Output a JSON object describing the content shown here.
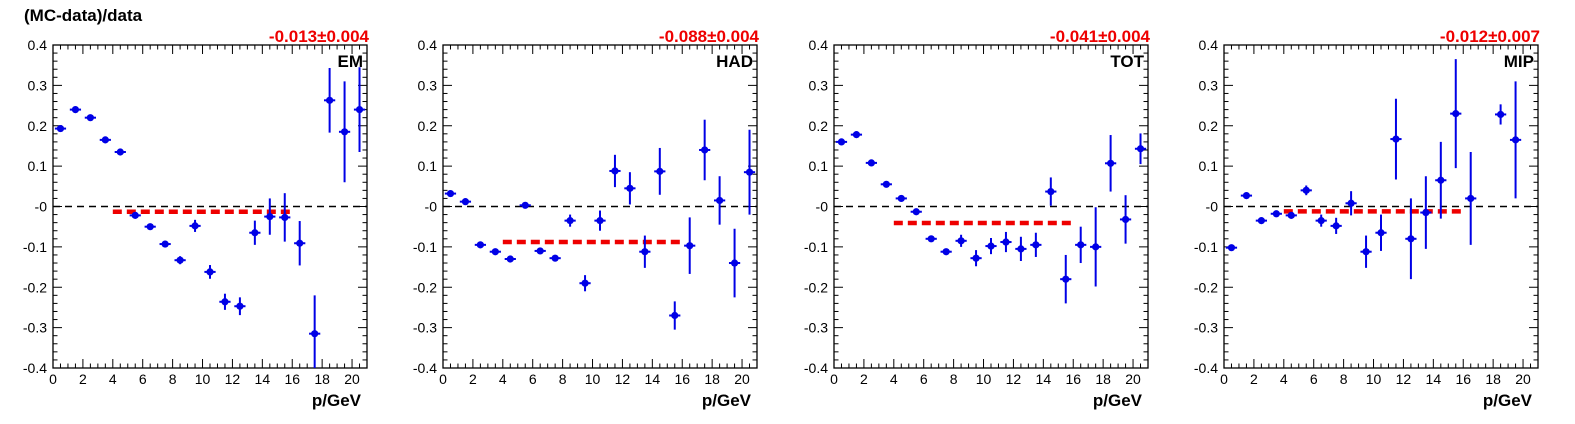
{
  "figure": {
    "ylabel": "(MC-data)/data"
  },
  "chart_data": [
    {
      "type": "scatter",
      "panel": "EM",
      "xlabel": "p/GeV",
      "fit_label": "-0.013±0.004",
      "fit": {
        "value": -0.013,
        "x_range": [
          4,
          16
        ]
      },
      "xlim": [
        0,
        21
      ],
      "ylim": [
        -0.4,
        0.4
      ],
      "x_ticks": [
        0,
        2,
        4,
        6,
        8,
        10,
        12,
        14,
        16,
        18,
        20
      ],
      "y_ticks": [
        -0.4,
        -0.3,
        -0.2,
        -0.1,
        0,
        0.1,
        0.2,
        0.3,
        0.4
      ],
      "y_tick_labels": [
        "-0.4",
        "-0.3",
        "-0.2",
        "-0.1",
        "-0",
        "0.1",
        "0.2",
        "0.3",
        "0.4"
      ],
      "grid": false,
      "series": [
        {
          "x": [
            0.5,
            1.5,
            2.5,
            3.5,
            4.5,
            5.5,
            6.5,
            7.5,
            8.5,
            9.5,
            10.5,
            11.5,
            12.5,
            13.5,
            14.5,
            15.5,
            16.5,
            17.5,
            18.5,
            19.5,
            20.5
          ],
          "y": [
            0.193,
            0.24,
            0.22,
            0.165,
            0.135,
            -0.022,
            -0.05,
            -0.093,
            -0.133,
            -0.048,
            -0.162,
            -0.236,
            -0.247,
            -0.065,
            -0.025,
            -0.027,
            -0.091,
            -0.315,
            0.263,
            0.185,
            0.24
          ],
          "err": [
            0.005,
            0.005,
            0.005,
            0.005,
            0.005,
            0.006,
            0.007,
            0.008,
            0.01,
            0.015,
            0.017,
            0.02,
            0.022,
            0.03,
            0.045,
            0.06,
            0.055,
            0.095,
            0.08,
            0.125,
            0.105
          ]
        }
      ]
    },
    {
      "type": "scatter",
      "panel": "HAD",
      "xlabel": "p/GeV",
      "fit_label": "-0.088±0.004",
      "fit": {
        "value": -0.088,
        "x_range": [
          4,
          16
        ]
      },
      "xlim": [
        0,
        21
      ],
      "ylim": [
        -0.4,
        0.4
      ],
      "x_ticks": [
        0,
        2,
        4,
        6,
        8,
        10,
        12,
        14,
        16,
        18,
        20
      ],
      "y_ticks": [
        -0.4,
        -0.3,
        -0.2,
        -0.1,
        0,
        0.1,
        0.2,
        0.3,
        0.4
      ],
      "y_tick_labels": [
        "-0.4",
        "-0.3",
        "-0.2",
        "-0.1",
        "-0",
        "0.1",
        "0.2",
        "0.3",
        "0.4"
      ],
      "grid": false,
      "series": [
        {
          "x": [
            0.5,
            1.5,
            2.5,
            3.5,
            4.5,
            5.5,
            6.5,
            7.5,
            8.5,
            9.5,
            10.5,
            11.5,
            12.5,
            13.5,
            14.5,
            15.5,
            16.5,
            17.5,
            18.5,
            19.5,
            20.5
          ],
          "y": [
            0.032,
            0.012,
            -0.095,
            -0.112,
            -0.13,
            0.003,
            -0.11,
            -0.128,
            -0.035,
            -0.19,
            -0.035,
            0.088,
            0.045,
            -0.112,
            0.087,
            -0.27,
            -0.097,
            0.14,
            0.015,
            -0.14,
            0.085
          ],
          "err": [
            0.005,
            0.005,
            0.005,
            0.005,
            0.005,
            0.005,
            0.006,
            0.008,
            0.015,
            0.02,
            0.025,
            0.04,
            0.04,
            0.04,
            0.058,
            0.035,
            0.07,
            0.075,
            0.06,
            0.085,
            0.105
          ]
        }
      ]
    },
    {
      "type": "scatter",
      "panel": "TOT",
      "xlabel": "p/GeV",
      "fit_label": "-0.041±0.004",
      "fit": {
        "value": -0.041,
        "x_range": [
          4,
          16
        ]
      },
      "xlim": [
        0,
        21
      ],
      "ylim": [
        -0.4,
        0.4
      ],
      "x_ticks": [
        0,
        2,
        4,
        6,
        8,
        10,
        12,
        14,
        16,
        18,
        20
      ],
      "y_ticks": [
        -0.4,
        -0.3,
        -0.2,
        -0.1,
        0,
        0.1,
        0.2,
        0.3,
        0.4
      ],
      "y_tick_labels": [
        "-0.4",
        "-0.3",
        "-0.2",
        "-0.1",
        "-0",
        "0.1",
        "0.2",
        "0.3",
        "0.4"
      ],
      "grid": false,
      "series": [
        {
          "x": [
            0.5,
            1.5,
            2.5,
            3.5,
            4.5,
            5.5,
            6.5,
            7.5,
            8.5,
            9.5,
            10.5,
            11.5,
            12.5,
            13.5,
            14.5,
            15.5,
            16.5,
            17.5,
            18.5,
            19.5,
            20.5
          ],
          "y": [
            0.16,
            0.178,
            0.108,
            0.055,
            0.02,
            -0.013,
            -0.08,
            -0.112,
            -0.085,
            -0.128,
            -0.098,
            -0.088,
            -0.105,
            -0.095,
            0.037,
            -0.18,
            -0.095,
            -0.1,
            0.107,
            -0.032,
            0.143
          ],
          "err": [
            0.005,
            0.005,
            0.005,
            0.005,
            0.005,
            0.005,
            0.006,
            0.008,
            0.015,
            0.02,
            0.02,
            0.025,
            0.03,
            0.03,
            0.035,
            0.06,
            0.045,
            0.098,
            0.07,
            0.06,
            0.038
          ]
        }
      ]
    },
    {
      "type": "scatter",
      "panel": "MIP",
      "xlabel": "p/GeV",
      "fit_label": "-0.012±0.007",
      "fit": {
        "value": -0.012,
        "x_range": [
          4,
          16
        ]
      },
      "xlim": [
        0,
        21
      ],
      "ylim": [
        -0.4,
        0.4
      ],
      "x_ticks": [
        0,
        2,
        4,
        6,
        8,
        10,
        12,
        14,
        16,
        18,
        20
      ],
      "y_ticks": [
        -0.4,
        -0.3,
        -0.2,
        -0.1,
        0,
        0.1,
        0.2,
        0.3,
        0.4
      ],
      "y_tick_labels": [
        "-0.4",
        "-0.3",
        "-0.2",
        "-0.1",
        "-0",
        "0.1",
        "0.2",
        "0.3",
        "0.4"
      ],
      "grid": false,
      "series": [
        {
          "x": [
            0.5,
            1.5,
            2.5,
            3.5,
            4.5,
            5.5,
            6.5,
            7.5,
            8.5,
            9.5,
            10.5,
            11.5,
            12.5,
            13.5,
            14.5,
            15.5,
            16.5,
            18.5,
            19.5
          ],
          "y": [
            -0.102,
            0.027,
            -0.035,
            -0.018,
            -0.022,
            0.04,
            -0.035,
            -0.048,
            0.008,
            -0.112,
            -0.065,
            0.167,
            -0.08,
            -0.015,
            0.065,
            0.23,
            0.02,
            0.228,
            0.165
          ],
          "err": [
            0.005,
            0.005,
            0.005,
            0.005,
            0.008,
            0.012,
            0.015,
            0.02,
            0.03,
            0.04,
            0.045,
            0.1,
            0.1,
            0.09,
            0.095,
            0.135,
            0.115,
            0.025,
            0.145
          ]
        }
      ]
    }
  ]
}
